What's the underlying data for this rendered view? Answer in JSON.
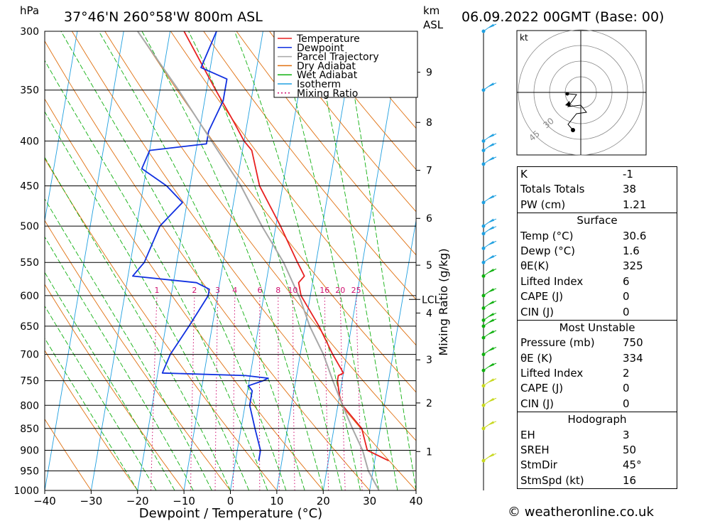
{
  "header": {
    "location": "37°46'N  260°58'W  800m  ASL",
    "datetime": "06.09.2022  00GMT  (Base: 00)",
    "hpa_label": "hPa",
    "km_label": "km",
    "asl_label": "ASL"
  },
  "chart_data": {
    "type": "line",
    "subtype": "skew-T log-P sounding",
    "xlabel": "Dewpoint / Temperature (°C)",
    "ylabel": "hPa",
    "ylim": [
      1000,
      300
    ],
    "xlim": [
      -40,
      40
    ],
    "x_ticks": [
      "−40",
      "−30",
      "−20",
      "−10",
      "0",
      "10",
      "20",
      "30",
      "40"
    ],
    "pressure_levels": [
      300,
      350,
      400,
      450,
      500,
      550,
      600,
      650,
      700,
      750,
      800,
      850,
      900,
      950,
      1000
    ],
    "km_ticks": [
      {
        "km": "1",
        "p": 903
      },
      {
        "km": "2",
        "p": 795
      },
      {
        "km": "3",
        "p": 710
      },
      {
        "km": "4",
        "p": 628
      },
      {
        "km": "5",
        "p": 554
      },
      {
        "km": "6",
        "p": 490
      },
      {
        "km": "7",
        "p": 432
      },
      {
        "km": "8",
        "p": 381
      },
      {
        "km": "9",
        "p": 334
      }
    ],
    "lcl": {
      "label": "LCL",
      "p": 606
    },
    "mixing_ratio_axis_label": "Mixing Ratio (g/kg)",
    "mixing_ratio_labels": [
      "1",
      "2",
      "3",
      "4",
      "6",
      "8",
      "10",
      "16",
      "20",
      "25"
    ],
    "mixing_ratio_values": [
      1,
      2,
      3,
      4,
      6,
      8,
      10,
      16,
      20,
      25
    ],
    "hodograph_unit": "kt",
    "hodograph_rings": [
      "30",
      "45"
    ],
    "series": [
      {
        "name": "Temperature",
        "color": "#e82020",
        "points": [
          [
            925,
            33
          ],
          [
            900,
            28
          ],
          [
            850,
            26
          ],
          [
            800,
            21
          ],
          [
            780,
            20
          ],
          [
            750,
            19
          ],
          [
            740,
            19
          ],
          [
            735,
            20
          ],
          [
            700,
            17
          ],
          [
            650,
            13
          ],
          [
            600,
            8
          ],
          [
            580,
            7
          ],
          [
            570,
            8
          ],
          [
            550,
            6
          ],
          [
            500,
            1
          ],
          [
            450,
            -5
          ],
          [
            410,
            -8
          ],
          [
            400,
            -10
          ],
          [
            380,
            -13
          ],
          [
            350,
            -18
          ],
          [
            300,
            -27
          ]
        ]
      },
      {
        "name": "Dewpoint",
        "color": "#1030e0",
        "points": [
          [
            925,
            5
          ],
          [
            900,
            5
          ],
          [
            850,
            3
          ],
          [
            800,
            1
          ],
          [
            780,
            1
          ],
          [
            770,
            1
          ],
          [
            760,
            0
          ],
          [
            750,
            3
          ],
          [
            745,
            4
          ],
          [
            740,
            -1
          ],
          [
            735,
            -19
          ],
          [
            700,
            -18
          ],
          [
            650,
            -15
          ],
          [
            600,
            -12
          ],
          [
            590,
            -12
          ],
          [
            580,
            -15
          ],
          [
            570,
            -29
          ],
          [
            550,
            -27
          ],
          [
            500,
            -25
          ],
          [
            470,
            -21
          ],
          [
            450,
            -25
          ],
          [
            430,
            -31
          ],
          [
            410,
            -30
          ],
          [
            403,
            -18
          ],
          [
            390,
            -18
          ],
          [
            360,
            -16
          ],
          [
            340,
            -16
          ],
          [
            330,
            -22
          ],
          [
            300,
            -20
          ]
        ]
      },
      {
        "name": "Parcel Trajectory",
        "color": "#a8a8a8",
        "points": [
          [
            1000,
            32
          ],
          [
            950,
            29
          ],
          [
            900,
            27
          ],
          [
            850,
            24
          ],
          [
            800,
            21
          ],
          [
            750,
            18
          ],
          [
            700,
            15
          ],
          [
            650,
            11
          ],
          [
            606,
            8
          ],
          [
            550,
            3
          ],
          [
            500,
            -3
          ],
          [
            450,
            -9
          ],
          [
            400,
            -17
          ],
          [
            350,
            -26
          ],
          [
            300,
            -37
          ]
        ]
      }
    ],
    "legend": [
      {
        "name": "Temperature",
        "color": "#e82020",
        "dash": ""
      },
      {
        "name": "Dewpoint",
        "color": "#1030e0",
        "dash": ""
      },
      {
        "name": "Parcel Trajectory",
        "color": "#a8a8a8",
        "dash": ""
      },
      {
        "name": "Dry Adiabat",
        "color": "#e07010",
        "dash": ""
      },
      {
        "name": "Wet Adiabat",
        "color": "#10b010",
        "dash": ""
      },
      {
        "name": "Isotherm",
        "color": "#20a0e0",
        "dash": ""
      },
      {
        "name": "Mixing Ratio",
        "color": "#d01070",
        "dash": "2,3"
      }
    ],
    "legend_position": "top-right"
  },
  "stats": {
    "indices": [
      {
        "label": "K",
        "value": "-1"
      },
      {
        "label": "Totals Totals",
        "value": "38"
      },
      {
        "label": "PW (cm)",
        "value": "1.21"
      }
    ],
    "surface": {
      "title": "Surface",
      "rows": [
        {
          "label": "Temp (°C)",
          "value": "30.6"
        },
        {
          "label": "Dewp (°C)",
          "value": "1.6"
        },
        {
          "label": "θE(K)",
          "value": "325"
        },
        {
          "label": "Lifted Index",
          "value": "6"
        },
        {
          "label": "CAPE (J)",
          "value": "0"
        },
        {
          "label": "CIN (J)",
          "value": "0"
        }
      ]
    },
    "most_unstable": {
      "title": "Most Unstable",
      "rows": [
        {
          "label": "Pressure (mb)",
          "value": "750"
        },
        {
          "label": "θE (K)",
          "value": "334"
        },
        {
          "label": "Lifted Index",
          "value": "2"
        },
        {
          "label": "CAPE (J)",
          "value": "0"
        },
        {
          "label": "CIN (J)",
          "value": "0"
        }
      ]
    },
    "hodograph": {
      "title": "Hodograph",
      "rows": [
        {
          "label": "EH",
          "value": "3"
        },
        {
          "label": "SREH",
          "value": "50"
        },
        {
          "label": "StmDir",
          "value": "45°"
        },
        {
          "label": "StmSpd (kt)",
          "value": "16"
        }
      ]
    }
  },
  "footer": "© weatheronline.co.uk"
}
